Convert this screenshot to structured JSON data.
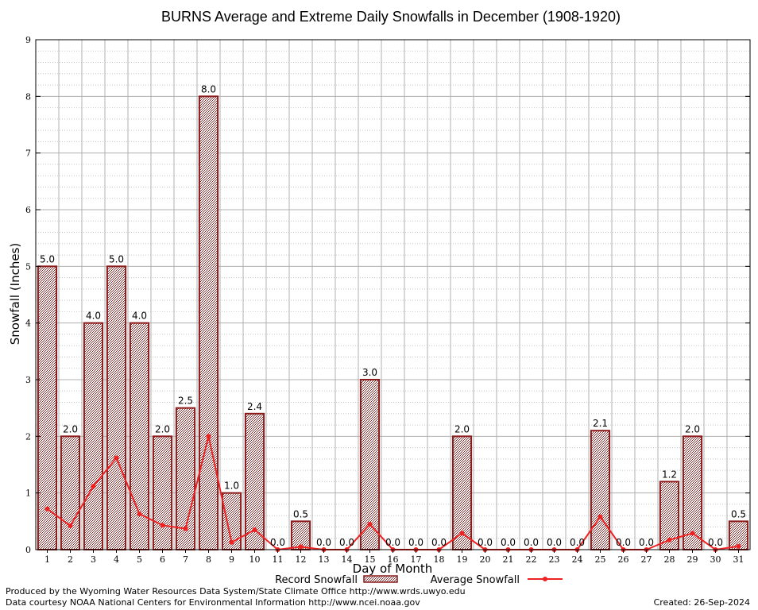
{
  "chart_data": {
    "type": "bar",
    "title": "BURNS Average and Extreme Daily Snowfalls in December (1908-1920)",
    "xlabel": "Day of Month",
    "ylabel": "Snowfall (Inches)",
    "ylim": [
      0,
      9
    ],
    "yticks": [
      0,
      1,
      2,
      3,
      4,
      5,
      6,
      7,
      8,
      9
    ],
    "grid": true,
    "legend_position": "bottom",
    "categories": [
      "1",
      "2",
      "3",
      "4",
      "5",
      "6",
      "7",
      "8",
      "9",
      "10",
      "11",
      "12",
      "13",
      "14",
      "15",
      "16",
      "17",
      "18",
      "19",
      "20",
      "21",
      "22",
      "23",
      "24",
      "25",
      "26",
      "27",
      "28",
      "29",
      "30",
      "31"
    ],
    "series": [
      {
        "name": "Record Snowfall",
        "kind": "bar",
        "color": "#8b1a1a",
        "values": [
          5.0,
          2.0,
          4.0,
          5.0,
          4.0,
          2.0,
          2.5,
          8.0,
          1.0,
          2.4,
          0.0,
          0.5,
          0.0,
          0.0,
          3.0,
          0.0,
          0.0,
          0.0,
          2.0,
          0.0,
          0.0,
          0.0,
          0.0,
          0.0,
          2.1,
          0.0,
          0.0,
          1.2,
          2.0,
          0.0,
          0.5
        ],
        "labels": [
          "5.0",
          "2.0",
          "4.0",
          "5.0",
          "4.0",
          "2.0",
          "2.5",
          "8.0",
          "1.0",
          "2.4",
          "0.0",
          "0.5",
          "0.0",
          "0.0",
          "3.0",
          "0.0",
          "0.0",
          "0.0",
          "2.0",
          "0.0",
          "0.0",
          "0.0",
          "0.0",
          "0.0",
          "2.1",
          "0.0",
          "0.0",
          "1.2",
          "2.0",
          "0.0",
          "0.5"
        ]
      },
      {
        "name": "Average Snowfall",
        "kind": "line",
        "color": "#ee2222",
        "values": [
          0.72,
          0.42,
          1.12,
          1.62,
          0.63,
          0.43,
          0.37,
          2.0,
          0.13,
          0.35,
          0.0,
          0.05,
          0.0,
          0.0,
          0.45,
          0.0,
          0.0,
          0.0,
          0.29,
          0.0,
          0.0,
          0.0,
          0.0,
          0.0,
          0.58,
          0.0,
          0.0,
          0.17,
          0.29,
          0.0,
          0.06
        ]
      }
    ]
  },
  "footer": {
    "produced_by": "Produced by the Wyoming Water Resources Data System/State Climate Office http://www.wrds.uwyo.edu",
    "courtesy": "Data courtesy NOAA National Centers for Environmental Information http://www.ncei.noaa.gov",
    "created": "Created: 26-Sep-2024"
  }
}
